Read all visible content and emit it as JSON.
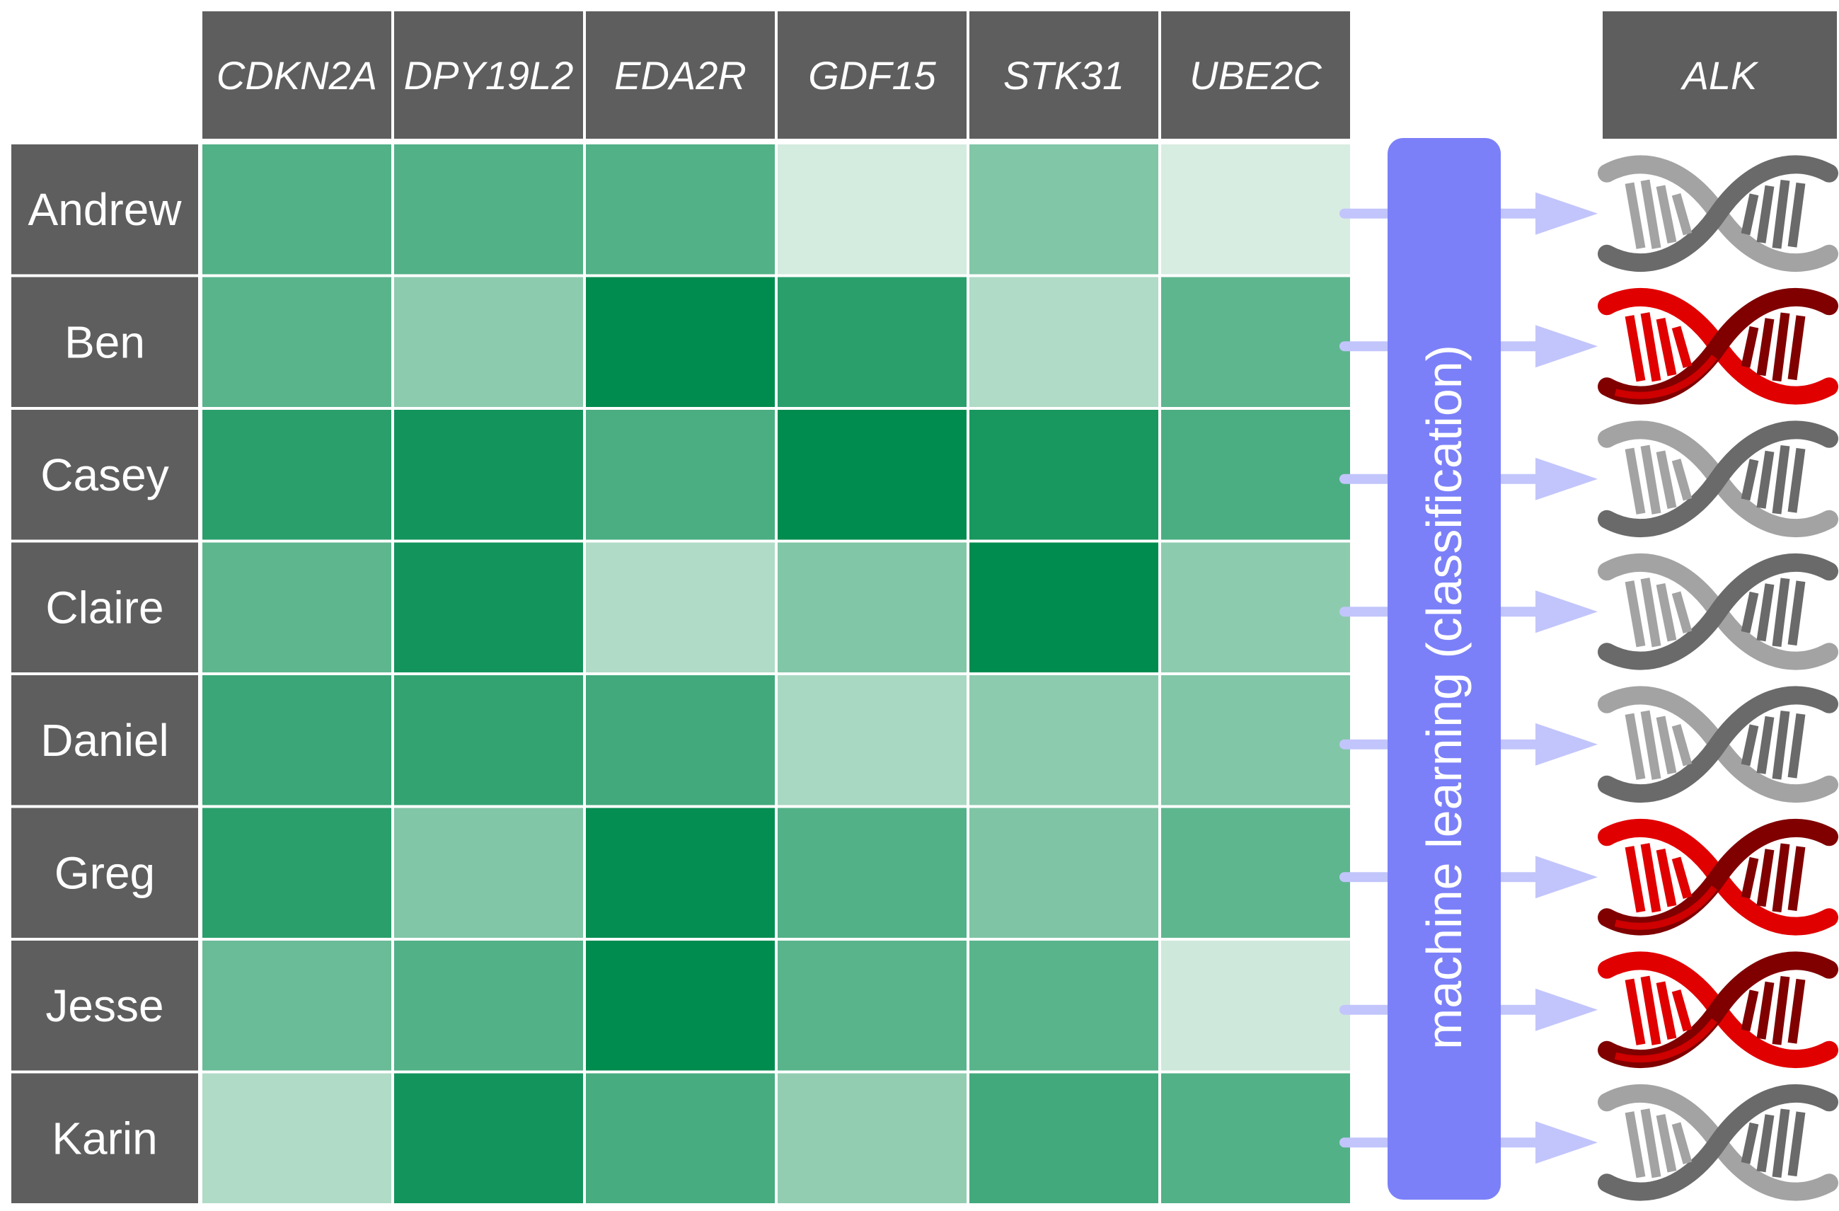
{
  "genes": [
    "CDKN2A",
    "DPY19L2",
    "EDA2R",
    "GDF15",
    "STK31",
    "UBE2C"
  ],
  "target_gene": "ALK",
  "classifier_label": "machine learning (classification)",
  "patients": [
    {
      "name": "Andrew",
      "expression": [
        0.65,
        0.65,
        0.65,
        0.1,
        0.45,
        0.08
      ],
      "alk_status": "normal"
    },
    {
      "name": "Ben",
      "expression": [
        0.62,
        0.4,
        1.0,
        0.82,
        0.25,
        0.6
      ],
      "alk_status": "mutant"
    },
    {
      "name": "Casey",
      "expression": [
        0.82,
        0.92,
        0.68,
        1.0,
        0.9,
        0.68
      ],
      "alk_status": "normal"
    },
    {
      "name": "Claire",
      "expression": [
        0.6,
        0.92,
        0.25,
        0.45,
        1.0,
        0.4
      ],
      "alk_status": "normal"
    },
    {
      "name": "Daniel",
      "expression": [
        0.75,
        0.78,
        0.72,
        0.28,
        0.4,
        0.45
      ],
      "alk_status": "normal"
    },
    {
      "name": "Greg",
      "expression": [
        0.82,
        0.45,
        0.98,
        0.65,
        0.46,
        0.6
      ],
      "alk_status": "mutant"
    },
    {
      "name": "Jesse",
      "expression": [
        0.55,
        0.65,
        1.0,
        0.62,
        0.62,
        0.12
      ],
      "alk_status": "mutant"
    },
    {
      "name": "Karin",
      "expression": [
        0.25,
        0.92,
        0.7,
        0.38,
        0.72,
        0.65
      ],
      "alk_status": "normal"
    }
  ],
  "colors": {
    "header_bg": "#5e5e5e",
    "header_text": "#ffffff",
    "heat_low": "#ebf5ef",
    "heat_high": "#008c4f",
    "classifier_bg": "#7b80f8",
    "arrow": "#c2c5fb",
    "dna_normal_light": "#a3a3a3",
    "dna_normal_dark": "#6a6a6a",
    "dna_mutant_light": "#e10000",
    "dna_mutant_dark": "#800000"
  }
}
